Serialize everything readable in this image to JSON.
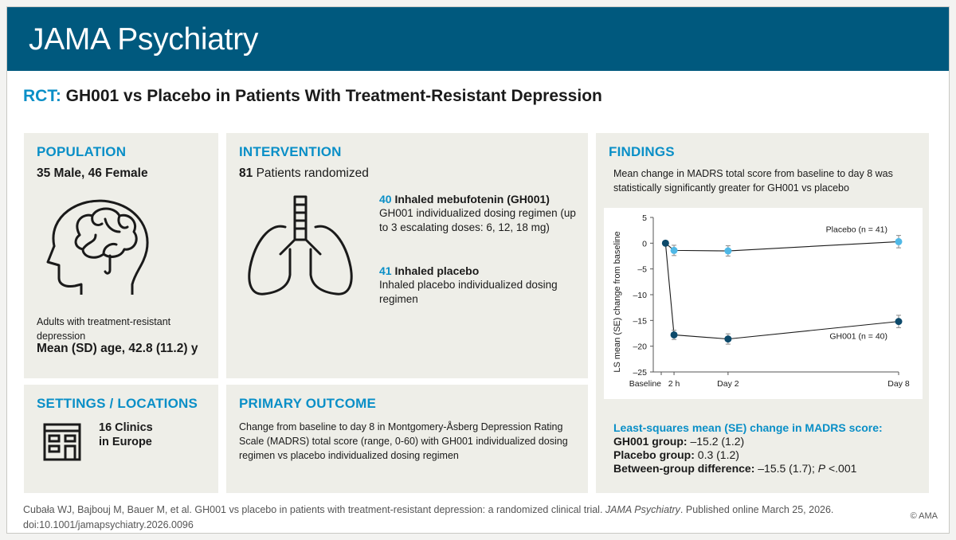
{
  "header": {
    "journal": "JAMA Psychiatry"
  },
  "title": {
    "tag": "RCT:",
    "text": "GH001 vs Placebo in Patients With Treatment-Resistant Depression"
  },
  "population": {
    "heading": "POPULATION",
    "sex": "35 Male, 46 Female",
    "desc": "Adults with treatment-resistant depression",
    "age": "Mean (SD) age, 42.8 (11.2) y",
    "icon": "brain-head-icon"
  },
  "intervention": {
    "heading": "INTERVENTION",
    "randomized_count": "81",
    "randomized_text": "Patients randomized",
    "arm1": {
      "count": "40",
      "name": "Inhaled mebufotenin (GH001)",
      "desc": "GH001 individualized dosing regimen (up to 3 escalating doses: 6, 12, 18 mg)"
    },
    "arm2": {
      "count": "41",
      "name": "Inhaled placebo",
      "desc": "Inhaled placebo individualized dosing regimen"
    },
    "icon": "lungs-icon"
  },
  "settings": {
    "heading": "SETTINGS / LOCATIONS",
    "line1": "16 Clinics",
    "line2": "in Europe",
    "icon": "building-icon"
  },
  "primary_outcome": {
    "heading": "PRIMARY OUTCOME",
    "text": "Change from baseline to day 8 in Montgomery-Åsberg Depression Rating Scale (MADRS) total score (range, 0-60) with GH001 individualized dosing regimen vs placebo individualized dosing regimen"
  },
  "findings": {
    "heading": "FINDINGS",
    "summary": "Mean change in MADRS total score from baseline to day 8 was statistically significantly greater for GH001 vs placebo",
    "ls_heading": "Least-squares mean (SE) change in MADRS score:",
    "gh_label": "GH001 group:",
    "gh_value": " –15.2 (1.2)",
    "pl_label": "Placebo group:",
    "pl_value": " 0.3 (1.2)",
    "diff_label": "Between-group difference:",
    "diff_value": " –15.5 (1.7); ",
    "p_label": "P",
    "p_value": " <.001"
  },
  "chart_data": {
    "type": "line",
    "ylabel": "LS mean (SE) change from baseline",
    "xlabel": "",
    "ylim": [
      -25,
      5
    ],
    "yticks": [
      5,
      0,
      -5,
      -10,
      -15,
      -20,
      -25
    ],
    "xticks": [
      {
        "label": "Baseline",
        "day": -0.35
      },
      {
        "label": "2 h",
        "day": 0.1
      },
      {
        "label": "Day 2",
        "day": 2
      },
      {
        "label": "Day 8",
        "day": 8
      }
    ],
    "baseline_point": {
      "x": -0.2,
      "y": 0
    },
    "series": [
      {
        "name": "Placebo (n = 41)",
        "color": "#4fb8e6",
        "x": [
          0.1,
          2,
          8
        ],
        "y": [
          -1.4,
          -1.5,
          0.3
        ],
        "se": [
          1.0,
          1.0,
          1.2
        ]
      },
      {
        "name": "GH001 (n = 40)",
        "color": "#0d4a6b",
        "x": [
          0.1,
          2,
          8
        ],
        "y": [
          -17.8,
          -18.6,
          -15.2
        ],
        "se": [
          0.9,
          1.0,
          1.2
        ]
      }
    ]
  },
  "footer": {
    "cite_pre": "Cubała WJ, Bajbouj M, Bauer M, et al. GH001 vs placebo in patients with treatment-resistant depression: a randomized clinical trial. ",
    "journal": "JAMA Psychiatry",
    "cite_post": ". Published online March 25, 2026. doi:10.1001/jamapsychiatry.2026.0096",
    "copyright": "© AMA"
  }
}
